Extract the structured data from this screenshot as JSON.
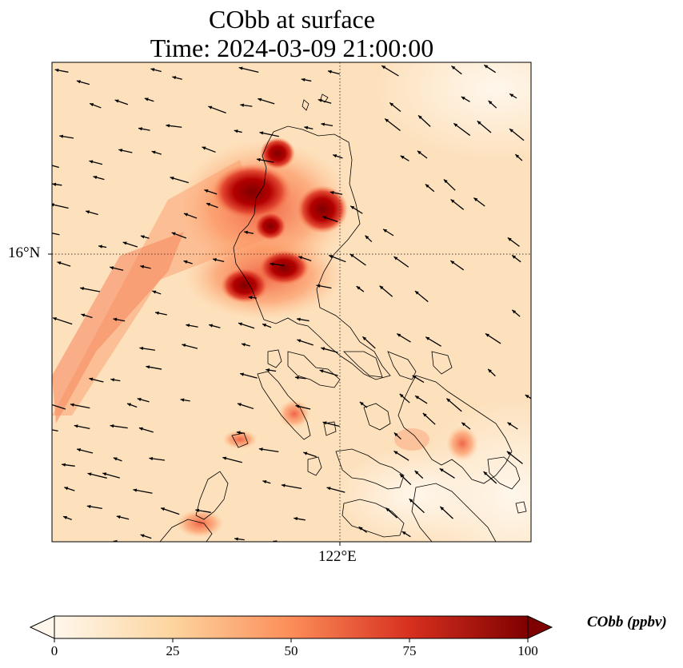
{
  "title": {
    "line1": "CObb at surface",
    "line2": "Time: 2024-03-09 21:00:00"
  },
  "axes": {
    "lat_label": "16°N",
    "lon_label": "122°E"
  },
  "colorbar": {
    "label": "CObb (ppbv)",
    "ticks": [
      "0",
      "25",
      "50",
      "75",
      "100"
    ],
    "range": [
      0,
      100
    ],
    "colormap": "OrRd",
    "colors": [
      "#fff7ec",
      "#fdd49e",
      "#fc8d59",
      "#d7301f",
      "#7f0000"
    ],
    "extend": "both"
  },
  "map": {
    "background_color": "#fde3c2",
    "coastline_color": "#000000",
    "gridlines": "dotted",
    "wind_vectors": true
  }
}
